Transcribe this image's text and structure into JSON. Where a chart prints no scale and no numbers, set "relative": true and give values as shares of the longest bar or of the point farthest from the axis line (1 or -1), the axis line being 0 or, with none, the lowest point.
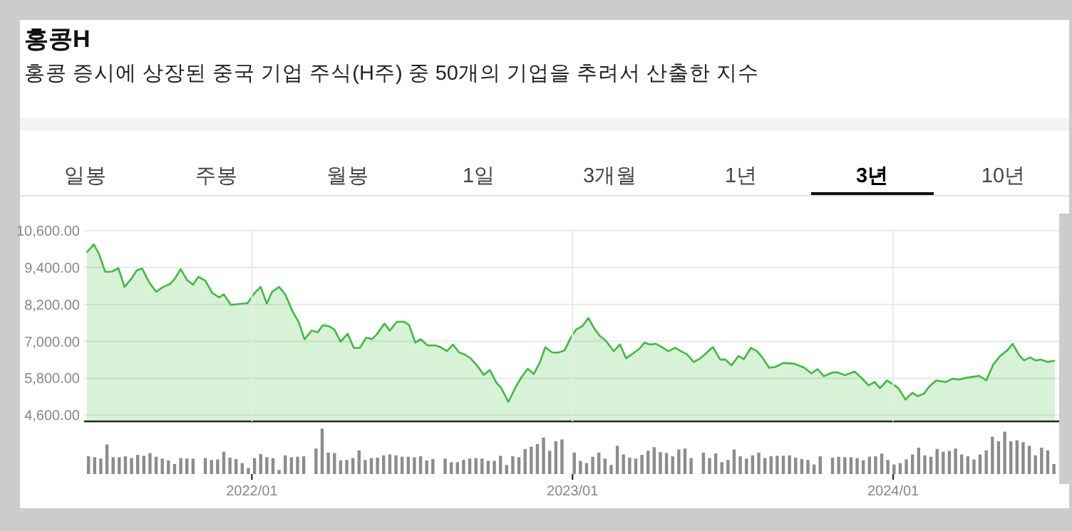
{
  "chart_data": [
    {
      "type": "area",
      "title": "홍콩H",
      "subtitle": "홍콩 증시에 상장된 중국 기업 주식(H주) 중 50개의 기업을 추려서 산출한 지수",
      "annotations": [
        "일봉",
        "주봉",
        "월봉",
        "1일",
        "3개월",
        "1년",
        "3년",
        "10년"
      ],
      "color": "#3dbd3d",
      "xlim": [
        "2021-06-24",
        "2024-07-08"
      ],
      "ylim": [
        4400,
        10600
      ],
      "yticks": [
        {
          "value": 4600,
          "label": "4,600.00"
        },
        {
          "value": 5800,
          "label": "5,800.00"
        },
        {
          "value": 7000,
          "label": "7,000.00"
        },
        {
          "value": 8200,
          "label": "8,200.00"
        },
        {
          "value": 9400,
          "label": "9,400.00"
        },
        {
          "value": 10600,
          "label": "10,600.00"
        }
      ],
      "grid": "y",
      "tick_labels": "y",
      "x": [
        "2021-06-27",
        "2021-07-05",
        "2021-07-11",
        "2021-07-18",
        "2021-07-26",
        "2021-08-02",
        "2021-08-09",
        "2021-08-17",
        "2021-08-23",
        "2021-08-29",
        "2021-09-06",
        "2021-09-14",
        "2021-09-22",
        "2021-09-30",
        "2021-10-05",
        "2021-10-12",
        "2021-10-19",
        "2021-10-26",
        "2021-11-01",
        "2021-11-09",
        "2021-11-17",
        "2021-11-25",
        "2021-11-30",
        "2021-12-08",
        "2021-12-27",
        "2022-01-04",
        "2022-01-11",
        "2022-01-18",
        "2022-01-24",
        "2022-02-01",
        "2022-02-08",
        "2022-02-16",
        "2022-02-23",
        "2022-03-02",
        "2022-03-10",
        "2022-03-17",
        "2022-03-23",
        "2022-03-30",
        "2022-04-05",
        "2022-04-12",
        "2022-04-20",
        "2022-04-27",
        "2022-05-04",
        "2022-05-11",
        "2022-05-18",
        "2022-05-23",
        "2022-06-01",
        "2022-06-07",
        "2022-06-15",
        "2022-06-23",
        "2022-06-29",
        "2022-07-06",
        "2022-07-12",
        "2022-07-20",
        "2022-07-29",
        "2022-08-04",
        "2022-08-11",
        "2022-08-18",
        "2022-08-25",
        "2022-08-31",
        "2022-09-07",
        "2022-09-15",
        "2022-09-22",
        "2022-09-29",
        "2022-10-06",
        "2022-10-12",
        "2022-10-20",
        "2022-10-28",
        "2022-11-04",
        "2022-11-11",
        "2022-11-18",
        "2022-11-25",
        "2022-12-01",
        "2022-12-09",
        "2022-12-16",
        "2022-12-23",
        "2022-12-30",
        "2023-01-05",
        "2023-01-12",
        "2023-01-19",
        "2023-01-26",
        "2023-02-01",
        "2023-02-08",
        "2023-02-17",
        "2023-02-24",
        "2023-03-03",
        "2023-03-11",
        "2023-03-18",
        "2023-03-24",
        "2023-03-30",
        "2023-04-06",
        "2023-04-13",
        "2023-04-20",
        "2023-04-28",
        "2023-05-05",
        "2023-05-11",
        "2023-05-19",
        "2023-05-26",
        "2023-06-02",
        "2023-06-07",
        "2023-06-10",
        "2023-06-18",
        "2023-06-24",
        "2023-07-01",
        "2023-07-09",
        "2023-07-15",
        "2023-07-23",
        "2023-07-30",
        "2023-08-05",
        "2023-08-13",
        "2023-08-20",
        "2023-08-29",
        "2023-09-11",
        "2023-09-22",
        "2023-09-30",
        "2023-10-07",
        "2023-10-14",
        "2023-10-24",
        "2023-10-30",
        "2023-11-07",
        "2023-11-18",
        "2023-11-25",
        "2023-12-04",
        "2023-12-11",
        "2023-12-17",
        "2023-12-25",
        "2024-01-01",
        "2024-01-07",
        "2024-01-15",
        "2024-01-23",
        "2024-01-29",
        "2024-02-05",
        "2024-02-11",
        "2024-02-19",
        "2024-03-01",
        "2024-03-09",
        "2024-03-16",
        "2024-03-25",
        "2024-04-08",
        "2024-04-16",
        "2024-04-24",
        "2024-05-02",
        "2024-05-10",
        "2024-05-16",
        "2024-05-24",
        "2024-05-29",
        "2024-06-05",
        "2024-06-11",
        "2024-06-17",
        "2024-06-25",
        "2024-07-03"
      ],
      "values": [
        9890,
        10150,
        9840,
        9260,
        9270,
        9380,
        8770,
        9040,
        9310,
        9370,
        8920,
        8610,
        8770,
        8870,
        9030,
        9350,
        9000,
        8840,
        9100,
        8970,
        8570,
        8430,
        8530,
        8190,
        8240,
        8570,
        8770,
        8230,
        8610,
        8770,
        8530,
        7990,
        7640,
        7070,
        7350,
        7300,
        7530,
        7490,
        7380,
        6990,
        7250,
        6790,
        6790,
        7120,
        7080,
        7220,
        7580,
        7350,
        7640,
        7640,
        7530,
        6960,
        7070,
        6870,
        6870,
        6810,
        6680,
        6900,
        6640,
        6580,
        6450,
        6190,
        5910,
        6070,
        5670,
        5480,
        5030,
        5500,
        5840,
        6110,
        5940,
        6330,
        6810,
        6640,
        6640,
        6710,
        7120,
        7380,
        7490,
        7760,
        7410,
        7180,
        7020,
        6680,
        6900,
        6450,
        6610,
        6760,
        6960,
        6900,
        6920,
        6810,
        6680,
        6790,
        6670,
        6590,
        6330,
        6440,
        6610,
        6750,
        6810,
        6410,
        6410,
        6220,
        6530,
        6420,
        6790,
        6680,
        6480,
        6140,
        6170,
        6300,
        6270,
        6140,
        5960,
        6100,
        5870,
        5990,
        5990,
        5900,
        6020,
        5840,
        5570,
        5680,
        5480,
        5730,
        5600,
        5480,
        5110,
        5330,
        5220,
        5300,
        5530,
        5730,
        5680,
        5790,
        5760,
        5820,
        5880,
        5730,
        6250,
        6530,
        6710,
        6920,
        6530,
        6380,
        6480,
        6380,
        6410,
        6330,
        6380
      ]
    },
    {
      "type": "bar",
      "relative": true,
      "color": "#8c8c8c",
      "xlim": [
        "2021-06-24",
        "2024-07-08"
      ],
      "xticks": [
        {
          "value": "2022-01-01",
          "label": "2022/01"
        },
        {
          "value": "2023-01-01",
          "label": "2023/01"
        },
        {
          "value": "2024-01-01",
          "label": "2024/01"
        }
      ],
      "grid": "x",
      "tick_labels": "x",
      "x": [
        "2021-06-29",
        "2021-07-06",
        "2021-07-13",
        "2021-07-20",
        "2021-07-27",
        "2021-08-03",
        "2021-08-10",
        "2021-08-17",
        "2021-08-24",
        "2021-08-31",
        "2021-09-07",
        "2021-09-14",
        "2021-09-21",
        "2021-09-28",
        "2021-10-05",
        "2021-10-12",
        "2021-10-19",
        "2021-10-26",
        "2021-11-09",
        "2021-11-16",
        "2021-11-23",
        "2021-11-30",
        "2021-12-07",
        "2021-12-14",
        "2021-12-21",
        "2021-12-28",
        "2022-01-04",
        "2022-01-11",
        "2022-01-18",
        "2022-01-25",
        "2022-02-01",
        "2022-02-08",
        "2022-02-15",
        "2022-02-22",
        "2022-03-01",
        "2022-03-15",
        "2022-03-22",
        "2022-03-29",
        "2022-04-05",
        "2022-04-12",
        "2022-04-19",
        "2022-04-26",
        "2022-05-03",
        "2022-05-10",
        "2022-05-17",
        "2022-05-24",
        "2022-05-31",
        "2022-06-07",
        "2022-06-14",
        "2022-06-21",
        "2022-06-28",
        "2022-07-05",
        "2022-07-12",
        "2022-07-19",
        "2022-07-26",
        "2022-08-09",
        "2022-08-16",
        "2022-08-23",
        "2022-08-30",
        "2022-09-06",
        "2022-09-13",
        "2022-09-20",
        "2022-09-27",
        "2022-10-04",
        "2022-10-11",
        "2022-10-18",
        "2022-10-25",
        "2022-11-01",
        "2022-11-08",
        "2022-11-15",
        "2022-11-22",
        "2022-11-29",
        "2022-12-06",
        "2022-12-13",
        "2022-12-20",
        "2023-01-03",
        "2023-01-10",
        "2023-01-17",
        "2023-01-24",
        "2023-01-31",
        "2023-02-07",
        "2023-02-14",
        "2023-02-21",
        "2023-02-28",
        "2023-03-07",
        "2023-03-14",
        "2023-03-21",
        "2023-03-28",
        "2023-04-04",
        "2023-04-11",
        "2023-04-18",
        "2023-04-25",
        "2023-05-02",
        "2023-05-09",
        "2023-05-16",
        "2023-05-30",
        "2023-06-06",
        "2023-06-13",
        "2023-06-20",
        "2023-06-27",
        "2023-07-04",
        "2023-07-11",
        "2023-07-18",
        "2023-07-25",
        "2023-08-01",
        "2023-08-08",
        "2023-08-15",
        "2023-08-22",
        "2023-08-29",
        "2023-09-05",
        "2023-09-12",
        "2023-09-19",
        "2023-09-26",
        "2023-10-03",
        "2023-10-10",
        "2023-10-24",
        "2023-10-31",
        "2023-11-07",
        "2023-11-14",
        "2023-11-21",
        "2023-11-28",
        "2023-12-05",
        "2023-12-12",
        "2023-12-19",
        "2023-12-26",
        "2024-01-02",
        "2024-01-09",
        "2024-01-16",
        "2024-01-23",
        "2024-01-30",
        "2024-02-06",
        "2024-02-13",
        "2024-02-20",
        "2024-02-27",
        "2024-03-05",
        "2024-03-12",
        "2024-03-19",
        "2024-03-26",
        "2024-04-02",
        "2024-04-09",
        "2024-04-16",
        "2024-04-23",
        "2024-04-30",
        "2024-05-07",
        "2024-05-14",
        "2024-05-21",
        "2024-05-28",
        "2024-06-04",
        "2024-06-11",
        "2024-06-18",
        "2024-06-25",
        "2024-07-02"
      ],
      "values": [
        0.39,
        0.37,
        0.34,
        0.65,
        0.37,
        0.37,
        0.39,
        0.35,
        0.42,
        0.4,
        0.46,
        0.38,
        0.34,
        0.3,
        0.22,
        0.35,
        0.34,
        0.34,
        0.35,
        0.31,
        0.32,
        0.49,
        0.36,
        0.33,
        0.24,
        0.13,
        0.35,
        0.44,
        0.37,
        0.35,
        0.09,
        0.41,
        0.37,
        0.38,
        0.39,
        0.56,
        1,
        0.47,
        0.46,
        0.3,
        0.31,
        0.35,
        0.52,
        0.31,
        0.35,
        0.36,
        0.41,
        0.43,
        0.41,
        0.38,
        0.38,
        0.37,
        0.39,
        0.3,
        0.33,
        0.34,
        0.26,
        0.26,
        0.31,
        0.34,
        0.35,
        0.34,
        0.29,
        0.29,
        0.4,
        0.2,
        0.39,
        0.37,
        0.55,
        0.6,
        0.66,
        0.8,
        0.51,
        0.72,
        0.76,
        0.47,
        0.29,
        0.24,
        0.38,
        0.47,
        0.34,
        0.2,
        0.62,
        0.43,
        0.36,
        0.34,
        0.42,
        0.51,
        0.59,
        0.48,
        0.46,
        0.39,
        0.54,
        0.56,
        0.35,
        0.47,
        0.35,
        0.45,
        0.26,
        0.31,
        0.54,
        0.39,
        0.34,
        0.41,
        0.47,
        0.35,
        0.39,
        0.4,
        0.4,
        0.41,
        0.36,
        0.33,
        0.31,
        0.21,
        0.39,
        0.36,
        0.38,
        0.37,
        0.37,
        0.35,
        0.3,
        0.38,
        0.39,
        0.45,
        0.31,
        0.21,
        0.24,
        0.32,
        0.43,
        0.58,
        0.41,
        0.38,
        0.55,
        0.49,
        0.51,
        0.56,
        0.43,
        0.39,
        0.32,
        0.43,
        0.52,
        0.82,
        0.72,
        0.93,
        0.72,
        0.74,
        0.7,
        0.62,
        0.41,
        0.58,
        0.52,
        0.22
      ]
    }
  ]
}
